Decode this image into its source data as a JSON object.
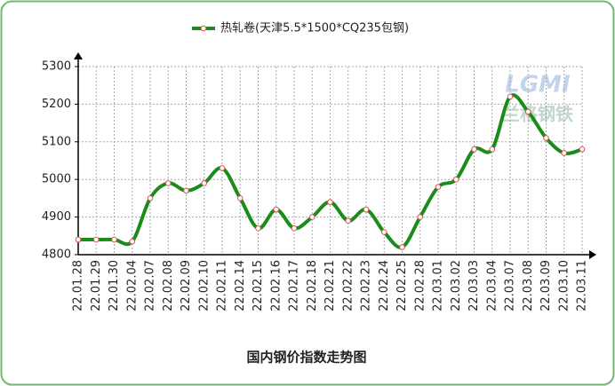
{
  "chart_data": {
    "type": "line",
    "title": "国内钢价指数走势图",
    "watermark": [
      "LGMI",
      "兰格钢铁"
    ],
    "categories": [
      "22.01.28",
      "22.01.29",
      "22.01.30",
      "22.02.04",
      "22.02.07",
      "22.02.08",
      "22.02.09",
      "22.02.10",
      "22.02.11",
      "22.02.14",
      "22.02.15",
      "22.02.16",
      "22.02.17",
      "22.02.18",
      "22.02.21",
      "22.02.22",
      "22.02.23",
      "22.02.24",
      "22.02.25",
      "22.02.28",
      "22.03.01",
      "22.03.02",
      "22.03.03",
      "22.03.04",
      "22.03.07",
      "22.03.08",
      "22.03.09",
      "22.03.10",
      "22.03.11"
    ],
    "series": [
      {
        "name": "热轧卷(天津5.5*1500*CQ235包钢)",
        "color": "#1a8c1a",
        "values": [
          4840,
          4840,
          4840,
          4835,
          4950,
          4990,
          4970,
          4990,
          5030,
          4950,
          4870,
          4920,
          4870,
          4900,
          4940,
          4890,
          4920,
          4860,
          4820,
          4900,
          4980,
          5000,
          5080,
          5080,
          5220,
          5180,
          5110,
          5070,
          5080
        ]
      }
    ],
    "ylim": [
      4800,
      5300
    ],
    "yticks": [
      4800,
      4900,
      5000,
      5100,
      5200,
      5300
    ],
    "grid": true,
    "legend": "top"
  }
}
